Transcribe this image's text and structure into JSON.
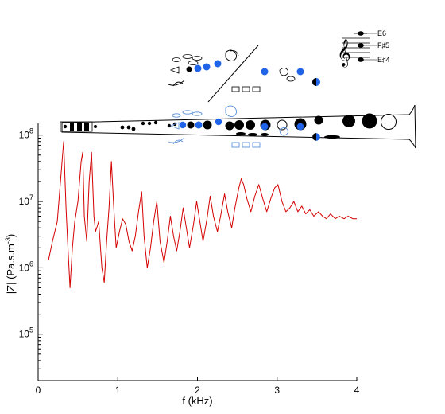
{
  "chart_data": {
    "type": "line",
    "xlabel": "f (kHz)",
    "ylabel_main": "|Z| (Pa.s.m",
    "ylabel_sup": "-3",
    "ylabel_tail": ")",
    "x_ticks": [
      0,
      1,
      2,
      3,
      4
    ],
    "y_ticks": [
      {
        "value": 100000,
        "base": "10",
        "exp": "5"
      },
      {
        "value": 1000000,
        "base": "10",
        "exp": "6"
      },
      {
        "value": 10000000,
        "base": "10",
        "exp": "7"
      },
      {
        "value": 100000000,
        "base": "10",
        "exp": "8"
      }
    ],
    "xlim": [
      0,
      4
    ],
    "ylim": [
      20000,
      150000000
    ],
    "y_scale": "log",
    "grid": false,
    "series": [
      {
        "color": "#d40000",
        "x": [
          0.13,
          0.18,
          0.24,
          0.28,
          0.32,
          0.35,
          0.37,
          0.4,
          0.43,
          0.46,
          0.5,
          0.54,
          0.56,
          0.58,
          0.61,
          0.64,
          0.67,
          0.7,
          0.72,
          0.76,
          0.8,
          0.83,
          0.86,
          0.89,
          0.92,
          0.95,
          0.98,
          1.02,
          1.06,
          1.1,
          1.14,
          1.18,
          1.22,
          1.26,
          1.3,
          1.33,
          1.37,
          1.41,
          1.45,
          1.49,
          1.53,
          1.58,
          1.62,
          1.66,
          1.7,
          1.74,
          1.78,
          1.82,
          1.86,
          1.9,
          1.95,
          1.99,
          2.03,
          2.07,
          2.12,
          2.16,
          2.2,
          2.25,
          2.29,
          2.34,
          2.38,
          2.43,
          2.47,
          2.52,
          2.55,
          2.58,
          2.62,
          2.67,
          2.72,
          2.77,
          2.82,
          2.87,
          2.92,
          2.97,
          3.01,
          3.06,
          3.11,
          3.16,
          3.21,
          3.26,
          3.31,
          3.36,
          3.41,
          3.46,
          3.52,
          3.57,
          3.62,
          3.67,
          3.73,
          3.78,
          3.84,
          3.89,
          3.95,
          4.0
        ],
        "y": [
          1300000,
          2500000,
          5000000,
          20000000,
          80000000,
          8000000,
          2500000,
          500000,
          2000000,
          5000000,
          10000000,
          40000000,
          55000000,
          6000000,
          2500000,
          20000000,
          55000000,
          6000000,
          3500000,
          5000000,
          1000000,
          600000,
          2500000,
          8000000,
          40000000,
          8000000,
          2000000,
          3500000,
          5500000,
          4500000,
          2500000,
          1800000,
          3000000,
          7000000,
          14000000,
          3000000,
          1000000,
          2000000,
          5000000,
          10000000,
          2500000,
          1200000,
          2500000,
          6000000,
          3000000,
          1800000,
          3500000,
          8000000,
          4000000,
          2000000,
          4500000,
          10000000,
          5000000,
          2500000,
          5500000,
          12000000,
          6000000,
          3500000,
          6000000,
          13000000,
          7000000,
          4000000,
          8000000,
          16000000,
          22000000,
          18000000,
          11000000,
          7000000,
          12000000,
          18000000,
          11000000,
          7000000,
          11000000,
          16000000,
          18000000,
          10000000,
          7000000,
          8000000,
          10000000,
          7000000,
          8500000,
          6500000,
          7500000,
          6000000,
          7000000,
          6000000,
          5500000,
          6500000,
          5500000,
          6000000,
          5500000,
          6000000,
          5500000,
          5500000
        ]
      }
    ]
  },
  "illustration": {
    "notes": [
      "E6",
      "F♯5",
      "E♯4"
    ]
  },
  "colors": {
    "curve": "#d40000",
    "key_blue": "#1f63e8",
    "ghost_blue": "#5a8fd8"
  }
}
